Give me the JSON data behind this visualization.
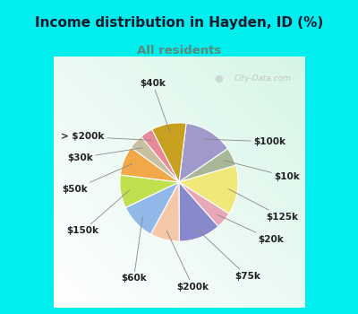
{
  "title": "Income distribution in Hayden, ID (%)",
  "subtitle": "All residents",
  "title_color": "#1a1a2e",
  "subtitle_color": "#5a8a7a",
  "bg_outer": "#00EEEE",
  "watermark": "City-Data.com",
  "labels": [
    "$100k",
    "$10k",
    "$125k",
    "$20k",
    "$75k",
    "$200k",
    "$60k",
    "$150k",
    "$50k",
    "$30k",
    "> $200k",
    "$40k"
  ],
  "sizes": [
    13.5,
    5.0,
    13.5,
    4.5,
    11.5,
    8.0,
    10.0,
    9.0,
    8.0,
    4.0,
    3.5,
    9.5
  ],
  "colors": [
    "#a099cc",
    "#a8b898",
    "#f0e878",
    "#e8a8b8",
    "#8888cc",
    "#f5c8a8",
    "#90b8e8",
    "#c0e050",
    "#f0a848",
    "#c8c0a0",
    "#e88898",
    "#c8a020"
  ],
  "label_fontsize": 7.5
}
